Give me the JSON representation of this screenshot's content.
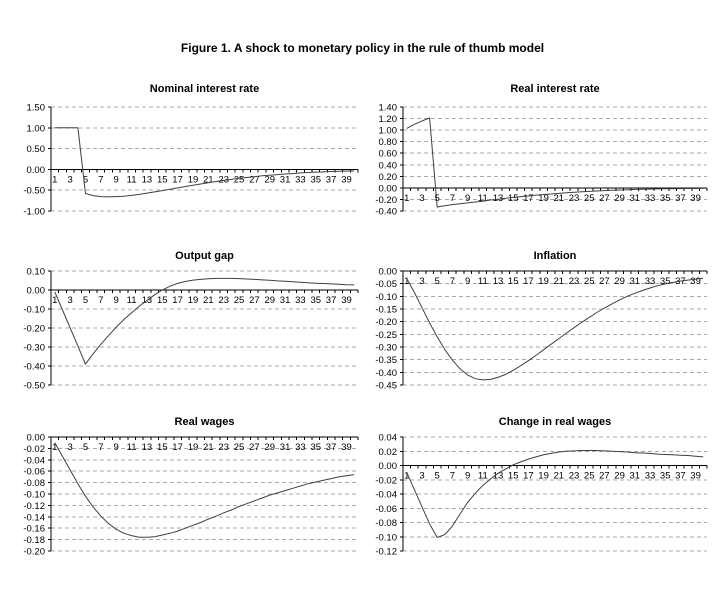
{
  "figure": {
    "title": "Figure 1. A shock to monetary policy in the rule of thumb model"
  },
  "colors": {
    "axis": "#000000",
    "gridline": "#aaaaaa",
    "series": "#404040",
    "text": "#000000",
    "background": "#ffffff"
  },
  "x_axis": {
    "first_period": 1,
    "last_period": 40,
    "step": 1,
    "tick_labels": [
      "1",
      "3",
      "5",
      "7",
      "9",
      "11",
      "13",
      "15",
      "17",
      "19",
      "21",
      "23",
      "25",
      "27",
      "29",
      "31",
      "33",
      "35",
      "37",
      "39"
    ]
  },
  "chart_data": [
    {
      "type": "line",
      "title": "Nominal interest rate",
      "ylim": [
        -1.0,
        1.5
      ],
      "yticks": [
        1.5,
        1.0,
        0.5,
        0.0,
        -0.5,
        -1.0
      ],
      "grid": "dashed-horizontal",
      "values": [
        1.0,
        1.0,
        1.0,
        1.0,
        -0.58,
        -0.63,
        -0.655,
        -0.66,
        -0.655,
        -0.645,
        -0.625,
        -0.6,
        -0.57,
        -0.54,
        -0.51,
        -0.475,
        -0.445,
        -0.41,
        -0.38,
        -0.35,
        -0.32,
        -0.29,
        -0.265,
        -0.24,
        -0.215,
        -0.195,
        -0.175,
        -0.155,
        -0.14,
        -0.125,
        -0.11,
        -0.1,
        -0.085,
        -0.075,
        -0.065,
        -0.06,
        -0.05,
        -0.045,
        -0.04,
        -0.035
      ]
    },
    {
      "type": "line",
      "title": "Real interest rate",
      "ylim": [
        -0.4,
        1.4
      ],
      "yticks": [
        1.4,
        1.2,
        1.0,
        0.8,
        0.6,
        0.4,
        0.2,
        0.0,
        -0.2,
        -0.4
      ],
      "grid": "dashed-horizontal",
      "values": [
        1.03,
        1.1,
        1.16,
        1.21,
        -0.33,
        -0.31,
        -0.29,
        -0.275,
        -0.26,
        -0.245,
        -0.23,
        -0.21,
        -0.195,
        -0.18,
        -0.165,
        -0.15,
        -0.14,
        -0.125,
        -0.115,
        -0.105,
        -0.095,
        -0.085,
        -0.075,
        -0.068,
        -0.06,
        -0.053,
        -0.047,
        -0.041,
        -0.036,
        -0.031,
        -0.027,
        -0.024,
        -0.021,
        -0.018,
        -0.016,
        -0.014,
        -0.012,
        -0.011,
        -0.01,
        -0.009
      ]
    },
    {
      "type": "line",
      "title": "Output gap",
      "ylim": [
        -0.5,
        0.1
      ],
      "yticks": [
        0.1,
        0.0,
        -0.1,
        -0.2,
        -0.3,
        -0.4,
        -0.5
      ],
      "grid": "dashed-horizontal",
      "values": [
        -0.01,
        -0.105,
        -0.2,
        -0.295,
        -0.39,
        -0.335,
        -0.285,
        -0.24,
        -0.195,
        -0.155,
        -0.12,
        -0.085,
        -0.055,
        -0.025,
        0.0,
        0.02,
        0.035,
        0.045,
        0.052,
        0.056,
        0.059,
        0.061,
        0.061,
        0.061,
        0.06,
        0.058,
        0.056,
        0.053,
        0.051,
        0.048,
        0.046,
        0.043,
        0.041,
        0.038,
        0.036,
        0.034,
        0.032,
        0.03,
        0.028,
        0.027
      ]
    },
    {
      "type": "line",
      "title": "Inflation",
      "ylim": [
        -0.45,
        0.0
      ],
      "yticks": [
        0.0,
        -0.05,
        -0.1,
        -0.15,
        -0.2,
        -0.25,
        -0.3,
        -0.35,
        -0.4,
        -0.45
      ],
      "grid": "dashed-horizontal",
      "values": [
        -0.03,
        -0.085,
        -0.145,
        -0.205,
        -0.26,
        -0.31,
        -0.352,
        -0.386,
        -0.41,
        -0.425,
        -0.43,
        -0.428,
        -0.42,
        -0.408,
        -0.392,
        -0.374,
        -0.354,
        -0.333,
        -0.311,
        -0.289,
        -0.267,
        -0.245,
        -0.224,
        -0.203,
        -0.183,
        -0.164,
        -0.146,
        -0.13,
        -0.114,
        -0.1,
        -0.088,
        -0.077,
        -0.067,
        -0.058,
        -0.051,
        -0.045,
        -0.04,
        -0.036,
        -0.032,
        -0.029
      ]
    },
    {
      "type": "line",
      "title": "Real wages",
      "ylim": [
        -0.2,
        0.0
      ],
      "yticks": [
        0.0,
        -0.02,
        -0.04,
        -0.06,
        -0.08,
        -0.1,
        -0.12,
        -0.14,
        -0.16,
        -0.18,
        -0.2
      ],
      "grid": "dashed-horizontal",
      "values": [
        -0.01,
        -0.034,
        -0.058,
        -0.082,
        -0.104,
        -0.123,
        -0.139,
        -0.152,
        -0.162,
        -0.169,
        -0.173,
        -0.176,
        -0.176,
        -0.175,
        -0.172,
        -0.169,
        -0.165,
        -0.16,
        -0.155,
        -0.15,
        -0.144,
        -0.139,
        -0.133,
        -0.128,
        -0.122,
        -0.117,
        -0.112,
        -0.107,
        -0.102,
        -0.098,
        -0.094,
        -0.09,
        -0.086,
        -0.082,
        -0.079,
        -0.076,
        -0.073,
        -0.07,
        -0.068,
        -0.066
      ]
    },
    {
      "type": "line",
      "title": "Change in real wages",
      "ylim": [
        -0.12,
        0.04
      ],
      "yticks": [
        0.04,
        0.02,
        0.0,
        -0.02,
        -0.04,
        -0.06,
        -0.08,
        -0.1,
        -0.12
      ],
      "grid": "dashed-horizontal",
      "values": [
        -0.01,
        -0.034,
        -0.058,
        -0.082,
        -0.101,
        -0.097,
        -0.085,
        -0.068,
        -0.052,
        -0.039,
        -0.028,
        -0.019,
        -0.011,
        -0.005,
        0.001,
        0.005,
        0.009,
        0.012,
        0.015,
        0.017,
        0.019,
        0.02,
        0.0205,
        0.021,
        0.021,
        0.021,
        0.0205,
        0.02,
        0.0195,
        0.019,
        0.018,
        0.0175,
        0.017,
        0.016,
        0.0155,
        0.015,
        0.0145,
        0.014,
        0.013,
        0.012
      ]
    }
  ]
}
